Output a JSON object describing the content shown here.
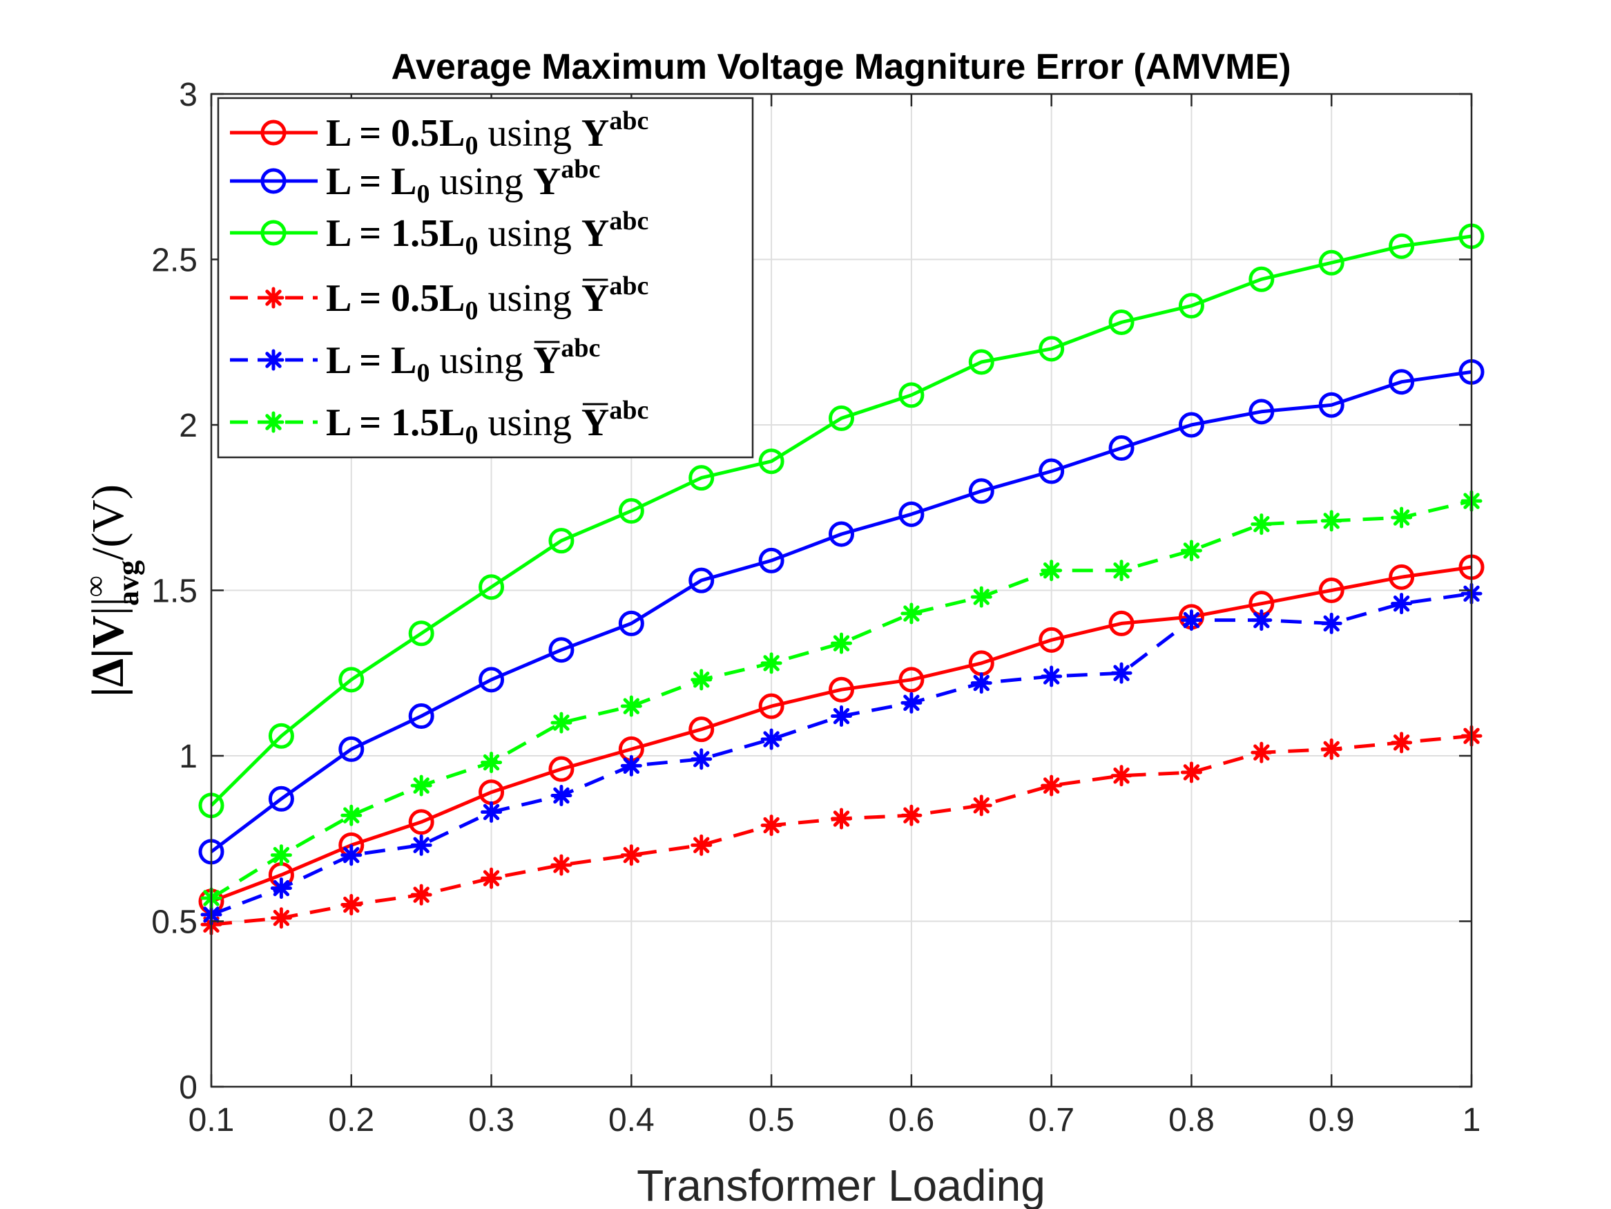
{
  "chart_data": {
    "type": "line",
    "title": "Average Maximum Voltage Magniture Error (AMVME)",
    "xlabel": "Transformer Loading",
    "ylabel": {
      "delta": "|Δ|",
      "V": "V",
      "norm": "||",
      "sup": "∞",
      "sub": "avg",
      "unit": "/(V)"
    },
    "xlim": [
      0.1,
      1
    ],
    "ylim": [
      0,
      3
    ],
    "xticks": [
      "0.1",
      "0.2",
      "0.3",
      "0.4",
      "0.5",
      "0.6",
      "0.7",
      "0.8",
      "0.9",
      "1"
    ],
    "yticks": [
      "0",
      "0.5",
      "1",
      "1.5",
      "2",
      "2.5",
      "3"
    ],
    "grid": true,
    "legend_position": "top-left",
    "x": [
      0.1,
      0.15,
      0.2,
      0.25,
      0.3,
      0.35,
      0.4,
      0.45,
      0.5,
      0.55,
      0.6,
      0.65,
      0.7,
      0.75,
      0.8,
      0.85,
      0.9,
      0.95,
      1.0
    ],
    "series": [
      {
        "legend": {
          "lhs": "L = ",
          "coef": "0.5",
          "L": "L",
          "sub": "0",
          "using": " using ",
          "Y": "Y",
          "sup": "abc"
        },
        "color": "#ff0000",
        "linestyle": "solid",
        "marker": "circle",
        "values": [
          0.56,
          0.64,
          0.73,
          0.8,
          0.89,
          0.96,
          1.02,
          1.08,
          1.15,
          1.2,
          1.23,
          1.28,
          1.35,
          1.4,
          1.42,
          1.46,
          1.5,
          1.54,
          1.57
        ]
      },
      {
        "legend": {
          "lhs": "L = ",
          "coef": "",
          "L": "L",
          "sub": "0",
          "using": " using ",
          "Y": "Y",
          "sup": "abc"
        },
        "color": "#0000ff",
        "linestyle": "solid",
        "marker": "circle",
        "values": [
          0.71,
          0.87,
          1.02,
          1.12,
          1.23,
          1.32,
          1.4,
          1.53,
          1.59,
          1.67,
          1.73,
          1.8,
          1.86,
          1.93,
          2.0,
          2.04,
          2.06,
          2.13,
          2.16
        ]
      },
      {
        "legend": {
          "lhs": "L = ",
          "coef": "1.5",
          "L": "L",
          "sub": "0",
          "using": " using ",
          "Y": "Y",
          "sup": "abc"
        },
        "color": "#00ff00",
        "linestyle": "solid",
        "marker": "circle",
        "values": [
          0.85,
          1.06,
          1.23,
          1.37,
          1.51,
          1.65,
          1.74,
          1.84,
          1.89,
          2.02,
          2.09,
          2.19,
          2.23,
          2.31,
          2.36,
          2.44,
          2.49,
          2.54,
          2.57
        ]
      },
      {
        "legend": {
          "lhs": "L = ",
          "coef": "0.5",
          "L": "L",
          "sub": "0",
          "using": " using ",
          "Y": "Y",
          "sup": "abc",
          "bar": true
        },
        "color": "#ff0000",
        "linestyle": "dashed",
        "marker": "asterisk",
        "values": [
          0.49,
          0.51,
          0.55,
          0.58,
          0.63,
          0.67,
          0.7,
          0.73,
          0.79,
          0.81,
          0.82,
          0.85,
          0.91,
          0.94,
          0.95,
          1.01,
          1.02,
          1.04,
          1.06
        ]
      },
      {
        "legend": {
          "lhs": "L = ",
          "coef": "",
          "L": "L",
          "sub": "0",
          "using": " using ",
          "Y": "Y",
          "sup": "abc",
          "bar": true
        },
        "color": "#0000ff",
        "linestyle": "dashed",
        "marker": "asterisk",
        "values": [
          0.52,
          0.6,
          0.7,
          0.73,
          0.83,
          0.88,
          0.97,
          0.99,
          1.05,
          1.12,
          1.16,
          1.22,
          1.24,
          1.25,
          1.41,
          1.41,
          1.4,
          1.46,
          1.49
        ]
      },
      {
        "legend": {
          "lhs": "L = ",
          "coef": "1.5",
          "L": "L",
          "sub": "0",
          "using": " using ",
          "Y": "Y",
          "sup": "abc",
          "bar": true
        },
        "color": "#00ff00",
        "linestyle": "dashed",
        "marker": "asterisk",
        "values": [
          0.57,
          0.7,
          0.82,
          0.91,
          0.98,
          1.1,
          1.15,
          1.23,
          1.28,
          1.34,
          1.43,
          1.48,
          1.56,
          1.56,
          1.62,
          1.7,
          1.71,
          1.72,
          1.77
        ]
      }
    ]
  }
}
